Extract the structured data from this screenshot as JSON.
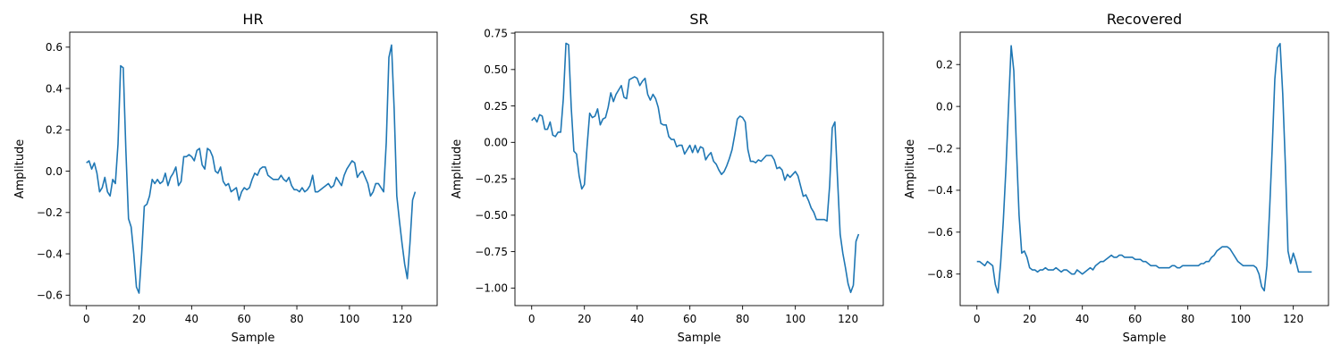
{
  "chart_data": [
    {
      "type": "line",
      "title": "HR",
      "xlabel": "Sample",
      "ylabel": "Amplitude",
      "xlim": [
        -6.35,
        133.35
      ],
      "ylim": [
        -0.6505,
        0.6725
      ],
      "xticks": [
        0,
        20,
        40,
        60,
        80,
        100,
        120
      ],
      "yticks": [
        -0.6,
        -0.4,
        -0.2,
        0.0,
        0.2,
        0.4,
        0.6
      ],
      "ytick_labels": [
        "−0.6",
        "−0.4",
        "−0.2",
        "0.0",
        "0.2",
        "0.4",
        "0.6"
      ],
      "grid": false,
      "color": "#1f77b4",
      "x_start": 0,
      "y": [
        0.04,
        0.05,
        0.01,
        0.04,
        -0.01,
        -0.1,
        -0.08,
        -0.03,
        -0.1,
        -0.12,
        -0.04,
        -0.06,
        0.13,
        0.51,
        0.5,
        0.1,
        -0.23,
        -0.27,
        -0.4,
        -0.56,
        -0.59,
        -0.4,
        -0.17,
        -0.16,
        -0.12,
        -0.04,
        -0.06,
        -0.04,
        -0.06,
        -0.05,
        -0.01,
        -0.07,
        -0.03,
        -0.01,
        0.02,
        -0.07,
        -0.05,
        0.07,
        0.07,
        0.08,
        0.07,
        0.05,
        0.1,
        0.11,
        0.03,
        0.01,
        0.11,
        0.1,
        0.07,
        0.0,
        -0.01,
        0.02,
        -0.05,
        -0.07,
        -0.06,
        -0.1,
        -0.09,
        -0.08,
        -0.14,
        -0.1,
        -0.08,
        -0.09,
        -0.08,
        -0.04,
        -0.01,
        -0.02,
        0.01,
        0.02,
        0.02,
        -0.02,
        -0.03,
        -0.04,
        -0.04,
        -0.04,
        -0.02,
        -0.04,
        -0.05,
        -0.03,
        -0.07,
        -0.09,
        -0.09,
        -0.1,
        -0.08,
        -0.1,
        -0.09,
        -0.07,
        -0.02,
        -0.1,
        -0.1,
        -0.09,
        -0.08,
        -0.07,
        -0.06,
        -0.08,
        -0.07,
        -0.03,
        -0.05,
        -0.07,
        -0.02,
        0.01,
        0.03,
        0.05,
        0.04,
        -0.03,
        -0.01,
        0.0,
        -0.03,
        -0.06,
        -0.12,
        -0.1,
        -0.06,
        -0.06,
        -0.08,
        -0.1,
        0.14,
        0.55,
        0.61,
        0.3,
        -0.12,
        -0.24,
        -0.35,
        -0.45,
        -0.52,
        -0.35,
        -0.14,
        -0.1
      ]
    },
    {
      "type": "line",
      "title": "SR",
      "xlabel": "Sample",
      "ylabel": "Amplitude",
      "xlim": [
        -6.35,
        133.35
      ],
      "ylim": [
        -1.1205,
        0.7565
      ],
      "xticks": [
        0,
        20,
        40,
        60,
        80,
        100,
        120
      ],
      "yticks": [
        -1.0,
        -0.75,
        -0.5,
        -0.25,
        0.0,
        0.25,
        0.5,
        0.75
      ],
      "ytick_labels": [
        "−1.00",
        "−0.75",
        "−0.50",
        "−0.25",
        "0.00",
        "0.25",
        "0.50",
        "0.75"
      ],
      "grid": false,
      "color": "#1f77b4",
      "x_start": 0,
      "y": [
        0.15,
        0.17,
        0.14,
        0.19,
        0.18,
        0.09,
        0.09,
        0.14,
        0.05,
        0.04,
        0.07,
        0.07,
        0.3,
        0.68,
        0.67,
        0.24,
        -0.06,
        -0.08,
        -0.23,
        -0.32,
        -0.29,
        -0.03,
        0.2,
        0.17,
        0.18,
        0.23,
        0.12,
        0.16,
        0.17,
        0.24,
        0.34,
        0.28,
        0.33,
        0.36,
        0.39,
        0.31,
        0.3,
        0.43,
        0.44,
        0.45,
        0.44,
        0.39,
        0.42,
        0.44,
        0.33,
        0.29,
        0.33,
        0.3,
        0.24,
        0.13,
        0.12,
        0.12,
        0.04,
        0.02,
        0.02,
        -0.03,
        -0.02,
        -0.02,
        -0.08,
        -0.05,
        -0.02,
        -0.07,
        -0.02,
        -0.07,
        -0.03,
        -0.04,
        -0.12,
        -0.09,
        -0.07,
        -0.13,
        -0.15,
        -0.19,
        -0.22,
        -0.2,
        -0.16,
        -0.11,
        -0.05,
        0.05,
        0.16,
        0.18,
        0.17,
        0.14,
        -0.05,
        -0.13,
        -0.13,
        -0.14,
        -0.12,
        -0.13,
        -0.11,
        -0.09,
        -0.09,
        -0.09,
        -0.12,
        -0.18,
        -0.17,
        -0.19,
        -0.26,
        -0.22,
        -0.24,
        -0.22,
        -0.2,
        -0.23,
        -0.3,
        -0.37,
        -0.36,
        -0.4,
        -0.45,
        -0.48,
        -0.53,
        -0.53,
        -0.53,
        -0.53,
        -0.54,
        -0.3,
        0.1,
        0.14,
        -0.25,
        -0.63,
        -0.76,
        -0.86,
        -0.97,
        -1.03,
        -0.98,
        -0.68,
        -0.63
      ]
    },
    {
      "type": "line",
      "title": "Recovered",
      "xlabel": "Sample",
      "ylabel": "Amplitude",
      "xlim": [
        -6.35,
        133.35
      ],
      "ylim": [
        -0.9505,
        0.3545
      ],
      "xticks": [
        0,
        20,
        40,
        60,
        80,
        100,
        120
      ],
      "yticks": [
        -0.8,
        -0.6,
        -0.4,
        -0.2,
        0.0,
        0.2
      ],
      "ytick_labels": [
        "−0.8",
        "−0.6",
        "−0.4",
        "−0.2",
        "0.0",
        "0.2"
      ],
      "grid": false,
      "color": "#1f77b4",
      "x_start": 0,
      "y": [
        -0.74,
        -0.74,
        -0.75,
        -0.76,
        -0.74,
        -0.75,
        -0.76,
        -0.85,
        -0.89,
        -0.75,
        -0.55,
        -0.3,
        0.0,
        0.29,
        0.17,
        -0.2,
        -0.52,
        -0.7,
        -0.69,
        -0.72,
        -0.77,
        -0.78,
        -0.78,
        -0.79,
        -0.78,
        -0.78,
        -0.77,
        -0.78,
        -0.78,
        -0.78,
        -0.77,
        -0.78,
        -0.79,
        -0.78,
        -0.78,
        -0.79,
        -0.8,
        -0.8,
        -0.78,
        -0.79,
        -0.8,
        -0.79,
        -0.78,
        -0.77,
        -0.78,
        -0.76,
        -0.75,
        -0.74,
        -0.74,
        -0.73,
        -0.72,
        -0.71,
        -0.72,
        -0.72,
        -0.71,
        -0.71,
        -0.72,
        -0.72,
        -0.72,
        -0.72,
        -0.73,
        -0.73,
        -0.73,
        -0.74,
        -0.74,
        -0.75,
        -0.76,
        -0.76,
        -0.76,
        -0.77,
        -0.77,
        -0.77,
        -0.77,
        -0.77,
        -0.76,
        -0.76,
        -0.77,
        -0.77,
        -0.76,
        -0.76,
        -0.76,
        -0.76,
        -0.76,
        -0.76,
        -0.76,
        -0.75,
        -0.75,
        -0.74,
        -0.74,
        -0.72,
        -0.71,
        -0.69,
        -0.68,
        -0.67,
        -0.67,
        -0.67,
        -0.68,
        -0.7,
        -0.72,
        -0.74,
        -0.75,
        -0.76,
        -0.76,
        -0.76,
        -0.76,
        -0.76,
        -0.77,
        -0.8,
        -0.86,
        -0.88,
        -0.76,
        -0.5,
        -0.2,
        0.13,
        0.28,
        0.3,
        0.06,
        -0.28,
        -0.69,
        -0.75,
        -0.7,
        -0.74,
        -0.79,
        -0.79,
        -0.79,
        -0.79,
        -0.79,
        -0.79
      ]
    }
  ]
}
